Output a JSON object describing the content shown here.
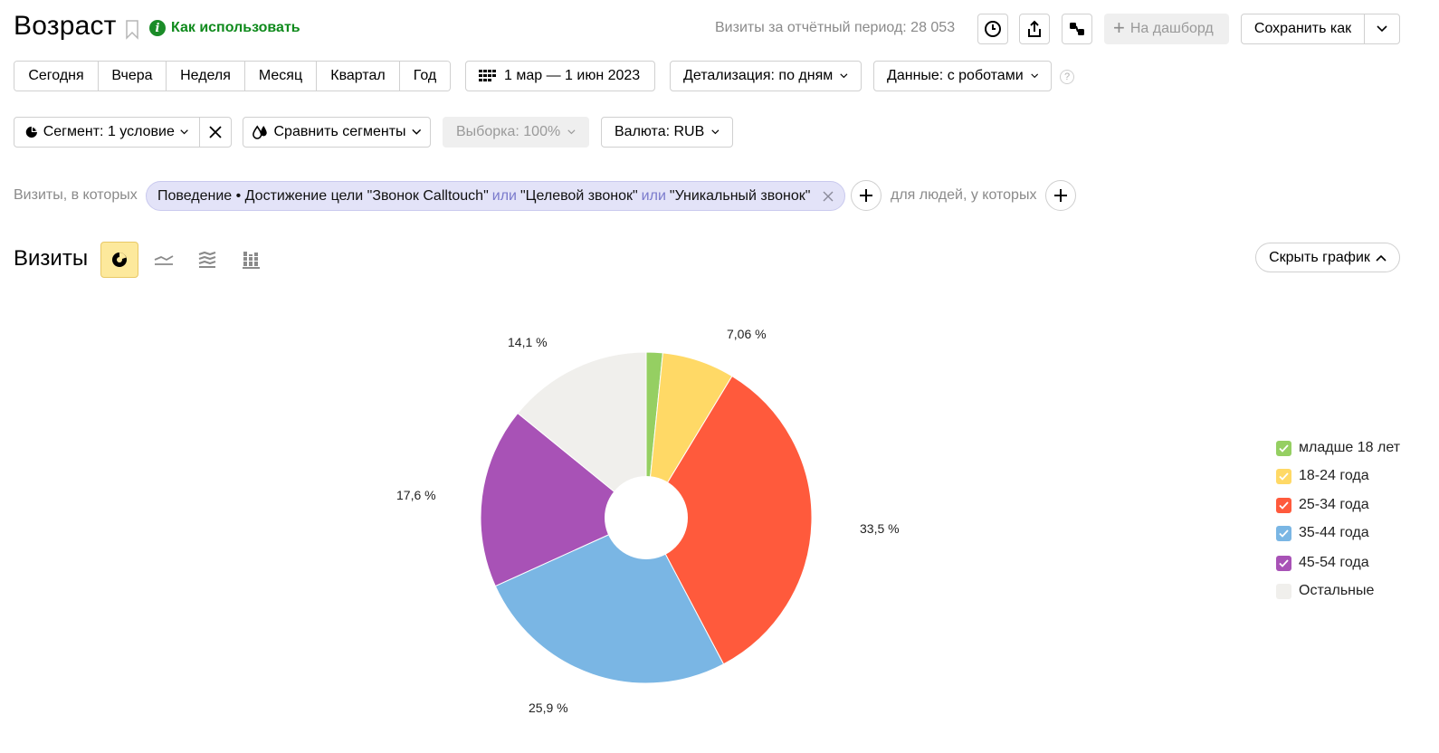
{
  "header": {
    "title": "Возраст",
    "howto_label": "Как использовать",
    "visits_total": "Визиты за отчётный период: 28 053",
    "dashboard_label": "На дашборд",
    "save_label": "Сохранить как"
  },
  "period": {
    "options": [
      "Сегодня",
      "Вчера",
      "Неделя",
      "Месяц",
      "Квартал",
      "Год"
    ],
    "date_range": "1 мар — 1 июн 2023",
    "detail": "Детализация: по дням",
    "data_mode": "Данные: с роботами",
    "help": "?"
  },
  "segment": {
    "segment_label": "Сегмент: 1 условие",
    "compare_label": "Сравнить сегменты",
    "sample_label": "Выборка: 100%",
    "currency_label": "Валюта: RUB"
  },
  "filter": {
    "lead": "Визиты, в которых",
    "chip_part1": "Поведение • Достижение цели \"Звонок Calltouch\"",
    "or1": "или",
    "chip_part2": "\"Целевой звонок\"",
    "or2": "или",
    "chip_part3": "\"Уникальный звонок\"",
    "mid": "для людей, у которых"
  },
  "chart_header": {
    "title": "Визиты",
    "hide_label": "Скрыть график"
  },
  "colors": {
    "under18": "#95cf62",
    "age18_24": "#ffd966",
    "age25_34": "#ff5a3c",
    "age35_44": "#7ab6e4",
    "age45_54": "#a852b6",
    "others": "#f0efec"
  },
  "chart_data": {
    "type": "pie",
    "donut": true,
    "series": [
      {
        "name": "младше 18 лет",
        "value": 1.6,
        "label": "",
        "color": "#95cf62"
      },
      {
        "name": "18-24 года",
        "value": 7.06,
        "label": "7,06 %",
        "color": "#ffd966"
      },
      {
        "name": "25-34 года",
        "value": 33.5,
        "label": "33,5 %",
        "color": "#ff5a3c"
      },
      {
        "name": "35-44 года",
        "value": 25.9,
        "label": "25,9 %",
        "color": "#7ab6e4"
      },
      {
        "name": "45-54 года",
        "value": 17.6,
        "label": "17,6 %",
        "color": "#a852b6"
      },
      {
        "name": "Остальные",
        "value": 14.1,
        "label": "14,1 %",
        "color": "#f0efec"
      }
    ],
    "legend_position": "right"
  }
}
